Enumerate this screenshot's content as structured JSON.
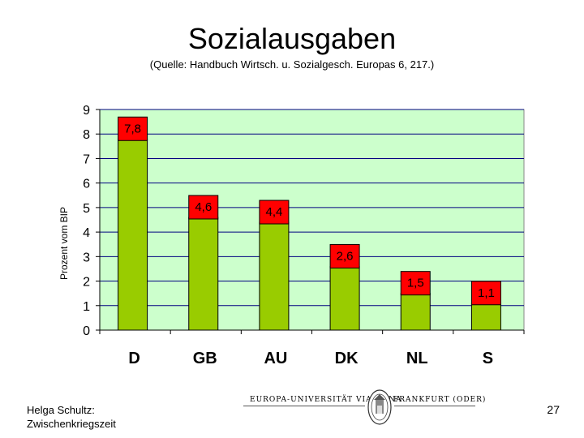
{
  "slide": {
    "title": "Sozialausgaben",
    "subtitle": "(Quelle: Handbuch Wirtsch. u. Sozialgesch. Europas 6, 217.)",
    "author_line1": "Helga Schultz:",
    "author_line2": "Zwischenkriegszeit",
    "page_number": "27",
    "logo_left_text": "EUROPA-UNIVERSITÄT VIADRINA",
    "logo_right_text": "FRANKFURT (ODER)"
  },
  "colors": {
    "bar": "#99cc00",
    "label_box": "#ff0000",
    "plot_bg": "#ccffcc",
    "gridline": "#000080"
  },
  "chart_data": {
    "type": "bar",
    "title": "Sozialausgaben",
    "xlabel": "",
    "ylabel": "Prozent vom BIP",
    "categories": [
      "D",
      "GB",
      "AU",
      "DK",
      "NL",
      "S"
    ],
    "values": [
      7.8,
      4.6,
      4.4,
      2.6,
      1.5,
      1.1
    ],
    "value_labels": [
      "7,8",
      "4,6",
      "4,4",
      "2,6",
      "1,5",
      "1,1"
    ],
    "ylim": [
      0,
      9
    ],
    "yticks": [
      "0",
      "1",
      "2",
      "3",
      "4",
      "5",
      "6",
      "7",
      "8",
      "9"
    ],
    "grid": true
  }
}
